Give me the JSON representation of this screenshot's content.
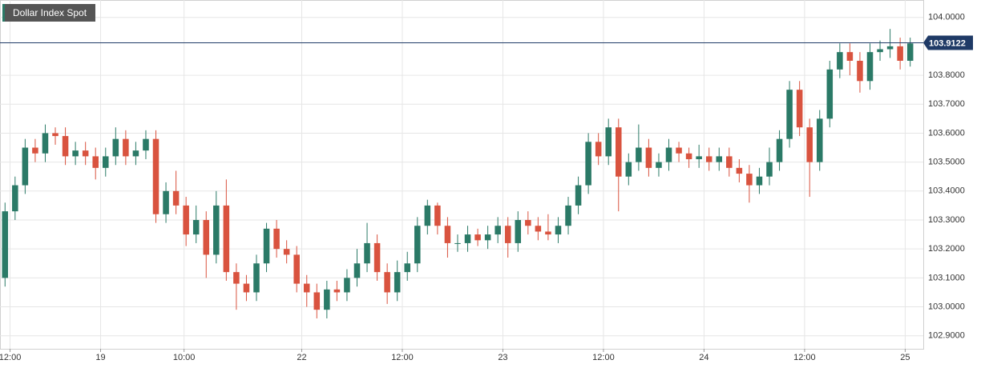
{
  "chart_data": {
    "type": "candlestick",
    "title": "Dollar Index Spot",
    "up_color": "#2b7a67",
    "down_color": "#d9533f",
    "last_price": 103.9122,
    "last_color": "#1f3a66",
    "xlim": [
      0,
      91.8
    ],
    "xticks": [
      {
        "value": 1,
        "label": "12:00"
      },
      {
        "value": 10,
        "label": "19"
      },
      {
        "value": 18.3,
        "label": "10:00"
      },
      {
        "value": 30,
        "label": "22"
      },
      {
        "value": 40,
        "label": "12:00"
      },
      {
        "value": 50,
        "label": "23"
      },
      {
        "value": 60,
        "label": "12:00"
      },
      {
        "value": 70,
        "label": "24"
      },
      {
        "value": 80,
        "label": "12:00"
      },
      {
        "value": 90,
        "label": "25"
      }
    ],
    "ylim": [
      102.855,
      104.06
    ],
    "yticks": [
      {
        "value": 102.9,
        "label": "102.9000"
      },
      {
        "value": 103,
        "label": "103.0000"
      },
      {
        "value": 103.1,
        "label": "103.1000"
      },
      {
        "value": 103.2,
        "label": "103.2000"
      },
      {
        "value": 103.3,
        "label": "103.3000"
      },
      {
        "value": 103.4,
        "label": "103.4000"
      },
      {
        "value": 103.5,
        "label": "103.5000"
      },
      {
        "value": 103.6,
        "label": "103.6000"
      },
      {
        "value": 103.7,
        "label": "103.7000"
      },
      {
        "value": 103.8,
        "label": "103.8000"
      },
      {
        "value": 104,
        "label": "104.0000"
      }
    ],
    "grid": true,
    "x": [
      0.5,
      1.5,
      2.5,
      3.5,
      4.5,
      5.5,
      6.5,
      7.5,
      8.5,
      9.5,
      10.5,
      11.5,
      12.5,
      13.5,
      14.5,
      15.5,
      16.5,
      17.5,
      18.5,
      19.5,
      20.5,
      21.5,
      22.5,
      23.5,
      24.5,
      25.5,
      26.5,
      27.5,
      28.5,
      29.5,
      30.5,
      31.5,
      32.5,
      33.5,
      34.5,
      35.5,
      36.5,
      37.5,
      38.5,
      39.5,
      40.5,
      41.5,
      42.5,
      43.5,
      44.5,
      45.5,
      46.5,
      47.5,
      48.5,
      49.5,
      50.5,
      51.5,
      52.5,
      53.5,
      54.5,
      55.5,
      56.5,
      57.5,
      58.5,
      59.5,
      60.5,
      61.5,
      62.5,
      63.5,
      64.5,
      65.5,
      66.5,
      67.5,
      68.5,
      69.5,
      70.5,
      71.5,
      72.5,
      73.5,
      74.5,
      75.5,
      76.5,
      77.5,
      78.5,
      79.5,
      80.5,
      81.5,
      82.5,
      83.5,
      84.5,
      85.5,
      86.5,
      87.5,
      88.5,
      89.5,
      90.5
    ],
    "open": [
      103.1,
      103.33,
      103.42,
      103.55,
      103.53,
      103.6,
      103.59,
      103.52,
      103.54,
      103.52,
      103.48,
      103.52,
      103.58,
      103.52,
      103.54,
      103.58,
      103.32,
      103.4,
      103.35,
      103.25,
      103.3,
      103.18,
      103.35,
      103.12,
      103.08,
      103.05,
      103.15,
      103.27,
      103.2,
      103.18,
      103.08,
      103.05,
      102.99,
      103.06,
      103.05,
      103.1,
      103.15,
      103.22,
      103.12,
      103.05,
      103.12,
      103.15,
      103.28,
      103.35,
      103.28,
      103.22,
      103.22,
      103.25,
      103.23,
      103.25,
      103.28,
      103.22,
      103.3,
      103.28,
      103.26,
      103.25,
      103.28,
      103.35,
      103.42,
      103.57,
      103.52,
      103.62,
      103.45,
      103.5,
      103.55,
      103.48,
      103.5,
      103.55,
      103.53,
      103.51,
      103.52,
      103.5,
      103.52,
      103.48,
      103.46,
      103.42,
      103.45,
      103.5,
      103.58,
      103.75,
      103.62,
      103.5,
      103.65,
      103.82,
      103.88,
      103.85,
      103.78,
      103.88,
      103.89,
      103.9,
      103.85
    ],
    "high": [
      103.36,
      103.45,
      103.58,
      103.58,
      103.63,
      103.62,
      103.62,
      103.57,
      103.57,
      103.55,
      103.55,
      103.62,
      103.61,
      103.57,
      103.61,
      103.61,
      103.43,
      103.47,
      103.38,
      103.35,
      103.33,
      103.4,
      103.44,
      103.15,
      103.11,
      103.18,
      103.29,
      103.3,
      103.23,
      103.21,
      103.11,
      103.08,
      103.09,
      103.09,
      103.13,
      103.2,
      103.29,
      103.25,
      103.15,
      103.16,
      103.19,
      103.31,
      103.37,
      103.36,
      103.31,
      103.25,
      103.28,
      103.27,
      103.28,
      103.31,
      103.31,
      103.33,
      103.33,
      103.31,
      103.32,
      103.31,
      103.38,
      103.45,
      103.6,
      103.6,
      103.65,
      103.65,
      103.53,
      103.63,
      103.58,
      103.53,
      103.58,
      103.57,
      103.55,
      103.56,
      103.55,
      103.55,
      103.55,
      103.51,
      103.49,
      103.48,
      103.55,
      103.61,
      103.78,
      103.78,
      103.65,
      103.68,
      103.85,
      103.91,
      103.91,
      103.88,
      103.91,
      103.92,
      103.96,
      103.93,
      103.93
    ],
    "low": [
      103.07,
      103.3,
      103.39,
      103.5,
      103.5,
      103.56,
      103.49,
      103.49,
      103.49,
      103.44,
      103.45,
      103.49,
      103.49,
      103.49,
      103.51,
      103.29,
      103.29,
      103.32,
      103.21,
      103.22,
      103.1,
      103.15,
      103.09,
      102.99,
      103.02,
      103.02,
      103.12,
      103.17,
      103.15,
      103.05,
      103.0,
      102.96,
      102.96,
      103.02,
      103.02,
      103.07,
      103.12,
      103.09,
      103.01,
      103.02,
      103.09,
      103.12,
      103.25,
      103.25,
      103.17,
      103.19,
      103.19,
      103.21,
      103.2,
      103.22,
      103.17,
      103.19,
      103.25,
      103.23,
      103.23,
      103.22,
      103.25,
      103.32,
      103.39,
      103.49,
      103.49,
      103.33,
      103.42,
      103.47,
      103.45,
      103.45,
      103.47,
      103.5,
      103.48,
      103.48,
      103.47,
      103.47,
      103.45,
      103.43,
      103.36,
      103.39,
      103.42,
      103.47,
      103.55,
      103.59,
      103.38,
      103.47,
      103.62,
      103.79,
      103.8,
      103.74,
      103.75,
      103.85,
      103.86,
      103.82,
      103.83
    ],
    "close": [
      103.33,
      103.42,
      103.55,
      103.53,
      103.6,
      103.59,
      103.52,
      103.54,
      103.52,
      103.48,
      103.52,
      103.58,
      103.52,
      103.54,
      103.58,
      103.32,
      103.4,
      103.35,
      103.25,
      103.3,
      103.18,
      103.35,
      103.12,
      103.08,
      103.05,
      103.15,
      103.27,
      103.2,
      103.18,
      103.08,
      103.05,
      102.99,
      103.06,
      103.05,
      103.1,
      103.15,
      103.22,
      103.12,
      103.05,
      103.12,
      103.15,
      103.28,
      103.35,
      103.28,
      103.22,
      103.22,
      103.25,
      103.23,
      103.25,
      103.28,
      103.22,
      103.3,
      103.28,
      103.26,
      103.25,
      103.28,
      103.35,
      103.42,
      103.57,
      103.52,
      103.62,
      103.45,
      103.5,
      103.55,
      103.48,
      103.5,
      103.55,
      103.53,
      103.51,
      103.52,
      103.5,
      103.52,
      103.48,
      103.46,
      103.42,
      103.45,
      103.5,
      103.58,
      103.75,
      103.62,
      103.5,
      103.65,
      103.82,
      103.88,
      103.85,
      103.78,
      103.88,
      103.89,
      103.9,
      103.85,
      103.91
    ]
  }
}
